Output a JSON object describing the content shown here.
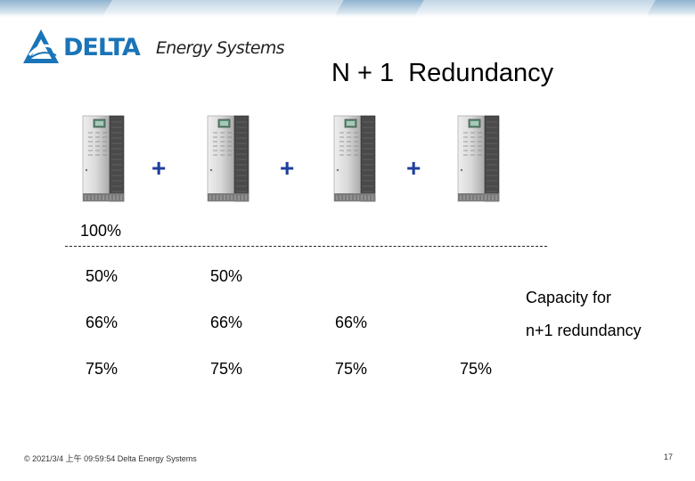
{
  "brand": {
    "name": "DELTA",
    "tagline": "Energy Systems",
    "accent_color": "#1a74b8",
    "logo_icon": "delta-triangle-logo-icon"
  },
  "slide": {
    "title": "N + 1  Redundancy",
    "units": [
      {
        "icon": "ups-cabinet-icon"
      },
      {
        "icon": "ups-cabinet-icon"
      },
      {
        "icon": "ups-cabinet-icon"
      },
      {
        "icon": "ups-cabinet-icon"
      }
    ],
    "plus_signs": [
      "+",
      "+",
      "+"
    ],
    "plus_color": "#1f3f9c",
    "baseline_label": "100%",
    "rows": [
      [
        "50%",
        "50%"
      ],
      [
        "66%",
        "66%",
        "66%"
      ],
      [
        "75%",
        "75%",
        "75%",
        "75%"
      ]
    ],
    "note_line1": "Capacity for",
    "note_line2": "n+1 redundancy"
  },
  "footer": {
    "copyright": "© 2021/3/4 上午 09:59:54 Delta Energy Systems",
    "page_number": "17"
  }
}
